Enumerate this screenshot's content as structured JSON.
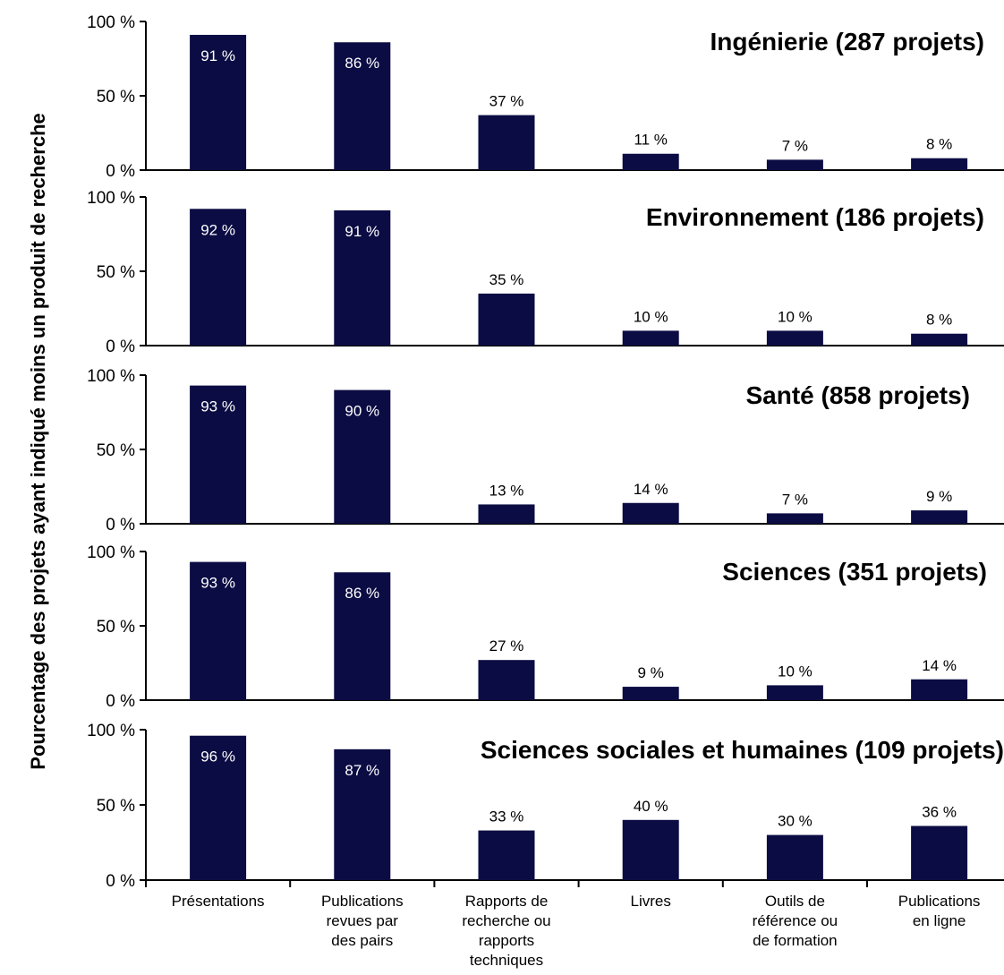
{
  "chart_data": {
    "type": "bar",
    "ylabel": "Pourcentage des projets ayant indiqué moins un produit de recherche",
    "ylim": [
      0,
      100
    ],
    "y_ticks": [
      "0 %",
      "50 %",
      "100 %"
    ],
    "categories": [
      [
        "Présentations"
      ],
      [
        "Publications",
        "revues par",
        "des pairs"
      ],
      [
        "Rapports de",
        "recherche ou",
        "rapports",
        "techniques"
      ],
      [
        "Livres"
      ],
      [
        "Outils de",
        "référence ou",
        "de formation"
      ],
      [
        "Publications",
        "en ligne"
      ]
    ],
    "bar_color": "#0c0c44",
    "panels": [
      {
        "title": "Ingénierie (287 projets)",
        "values": [
          91,
          86,
          37,
          11,
          7,
          8
        ],
        "value_labels": [
          "91 %",
          "86 %",
          "37 %",
          "11 %",
          "7 %",
          "8 %"
        ]
      },
      {
        "title": "Environnement (186 projets)",
        "values": [
          92,
          91,
          35,
          10,
          10,
          8
        ],
        "value_labels": [
          "92 %",
          "91 %",
          "35 %",
          "10 %",
          "10 %",
          "8 %"
        ]
      },
      {
        "title": "Santé (858 projets)",
        "values": [
          93,
          90,
          13,
          14,
          7,
          9
        ],
        "value_labels": [
          "93 %",
          "90 %",
          "13 %",
          "14 %",
          "7 %",
          "9 %"
        ]
      },
      {
        "title": "Sciences (351 projets)",
        "values": [
          93,
          86,
          27,
          9,
          10,
          14
        ],
        "value_labels": [
          "93 %",
          "86 %",
          "27 %",
          "9 %",
          "10 %",
          "14 %"
        ]
      },
      {
        "title": "Sciences sociales et humaines (109 projets)",
        "values": [
          96,
          87,
          33,
          40,
          30,
          36
        ],
        "value_labels": [
          "96 %",
          "87 %",
          "33 %",
          "40 %",
          "30 %",
          "36 %"
        ]
      }
    ]
  }
}
